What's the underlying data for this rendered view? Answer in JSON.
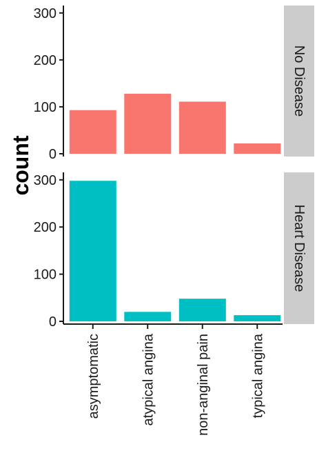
{
  "chart_data": {
    "type": "bar",
    "ylabel": "count",
    "xlabel": "",
    "categories": [
      "asymptomatic",
      "atypical angina",
      "non-anginal pain",
      "typical angina"
    ],
    "facet_direction": "vertical",
    "grid": false,
    "legend": "none",
    "ylim": [
      0,
      310
    ],
    "yticks": [
      0,
      100,
      200,
      300
    ],
    "panels": [
      {
        "strip_label": "No Disease",
        "color": "#F8766D",
        "values": [
          93,
          128,
          111,
          22
        ]
      },
      {
        "strip_label": "Heart Disease",
        "color": "#00BFC4",
        "values": [
          298,
          20,
          48,
          13
        ]
      }
    ],
    "strip_background": "#cccccc"
  }
}
